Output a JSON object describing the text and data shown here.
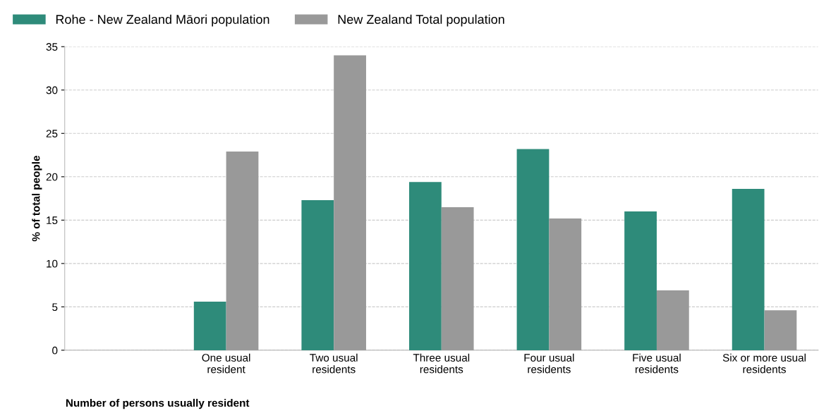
{
  "chart_data": {
    "type": "bar",
    "xlabel": "Number of persons usually resident",
    "ylabel": "% of total people",
    "categories": [
      null,
      "One usual\nresident",
      "Two usual\nresidents",
      "Three usual\nresidents",
      "Four usual\nresidents",
      "Five usual\nresidents",
      "Six or more usual\nresidents"
    ],
    "series": [
      {
        "name": "Rohe - New Zealand Māori population",
        "color": "#2e8b7a",
        "values": [
          null,
          5.6,
          17.3,
          19.4,
          23.2,
          16.0,
          18.6
        ]
      },
      {
        "name": "New Zealand Total population",
        "color": "#999999",
        "values": [
          null,
          22.9,
          34.0,
          16.5,
          15.2,
          6.9,
          4.6
        ]
      }
    ],
    "ylim": [
      0,
      35
    ],
    "yticks": [
      0,
      5,
      10,
      15,
      20,
      25,
      30,
      35
    ],
    "grid": "y",
    "legend": "top left"
  }
}
